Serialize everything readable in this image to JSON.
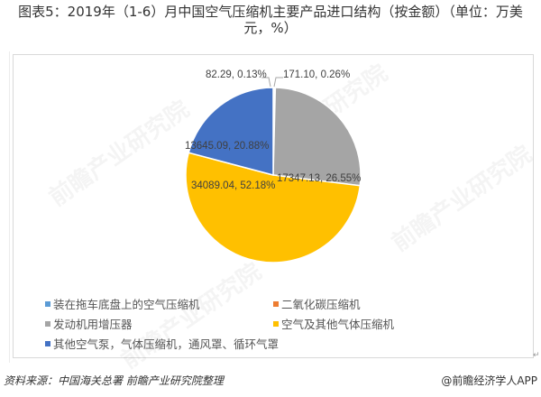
{
  "title": "图表5：2019年（1-6）月中国空气压缩机主要产品进口结构（按金额）（单位：万美元，%）",
  "chart_data": {
    "type": "pie",
    "title": "图表5：2019年（1-6）月中国空气压缩机主要产品进口结构（按金额）（单位：万美元，%）",
    "start_angle": "12 o'clock, clockwise",
    "categories": [
      "装在拖车底盘上的空气压缩机",
      "二氧化碳压缩机",
      "发动机用增压器",
      "空气及其他气体压缩机",
      "其他空气泵，气体压缩机，通风罩、循环气罩"
    ],
    "values": [
      82.29,
      171.1,
      17347.13,
      34089.04,
      13645.09
    ],
    "percentages": [
      0.13,
      0.26,
      26.55,
      52.18,
      20.88
    ],
    "colors": [
      "#5b9bd5",
      "#ed7d31",
      "#a5a5a5",
      "#ffc000",
      "#4472c4"
    ],
    "data_labels": [
      "82.29, 0.13%",
      "171.10, 0.26%",
      "17347.13, 26.55%",
      "34089.04, 52.18%",
      "13645.09, 20.88%"
    ],
    "legend_position": "bottom"
  },
  "legend": [
    {
      "label": "装在拖车底盘上的空气压缩机",
      "color": "#5b9bd5"
    },
    {
      "label": "二氧化碳压缩机",
      "color": "#ed7d31"
    },
    {
      "label": "发动机用增压器",
      "color": "#a5a5a5"
    },
    {
      "label": "空气及其他气体压缩机",
      "color": "#ffc000"
    },
    {
      "label": "其他空气泵，气体压缩机，通风罩、循环气罩",
      "color": "#4472c4"
    }
  ],
  "footer": {
    "source": "资料来源：中国海关总署 前瞻产业研究院整理",
    "credit": "@前瞻经济学人APP"
  },
  "watermark": "前瞻产业研究院"
}
